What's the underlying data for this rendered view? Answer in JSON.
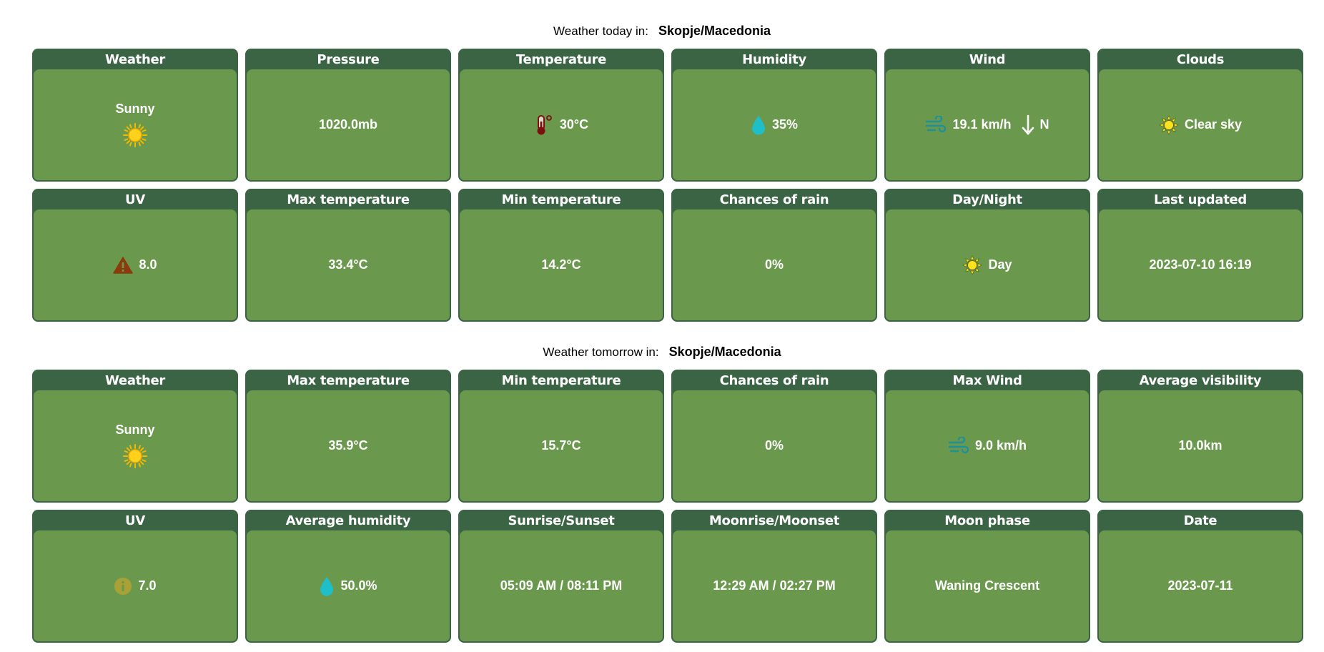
{
  "today": {
    "label": "Weather today in:",
    "location": "Skopje/Macedonia",
    "weather": {
      "header": "Weather",
      "condition": "Sunny",
      "icon": "sun-icon"
    },
    "pressure": {
      "header": "Pressure",
      "value": "1020.0mb"
    },
    "temperature": {
      "header": "Temperature",
      "value": "30°C",
      "icon": "thermometer-icon"
    },
    "humidity": {
      "header": "Humidity",
      "value": "35%",
      "icon": "water-drop-icon"
    },
    "wind": {
      "header": "Wind",
      "speed": "19.1 km/h",
      "direction": "N",
      "icon": "wind-icon",
      "direction_icon": "arrow-down-icon"
    },
    "clouds": {
      "header": "Clouds",
      "value": "Clear sky",
      "icon": "sun-icon"
    },
    "uv": {
      "header": "UV",
      "value": "8.0",
      "icon": "warning-icon"
    },
    "max_temp": {
      "header": "Max temperature",
      "value": "33.4°C"
    },
    "min_temp": {
      "header": "Min temperature",
      "value": "14.2°C"
    },
    "rain": {
      "header": "Chances of rain",
      "value": "0%"
    },
    "day_night": {
      "header": "Day/Night",
      "value": "Day",
      "icon": "sun-icon"
    },
    "last_updated": {
      "header": "Last updated",
      "value": "2023-07-10 16:19"
    }
  },
  "tomorrow": {
    "label": "Weather tomorrow in:",
    "location": "Skopje/Macedonia",
    "weather": {
      "header": "Weather",
      "condition": "Sunny",
      "icon": "sun-icon"
    },
    "max_temp": {
      "header": "Max temperature",
      "value": "35.9°C"
    },
    "min_temp": {
      "header": "Min temperature",
      "value": "15.7°C"
    },
    "rain": {
      "header": "Chances of rain",
      "value": "0%"
    },
    "max_wind": {
      "header": "Max Wind",
      "value": "9.0 km/h",
      "icon": "wind-icon"
    },
    "visibility": {
      "header": "Average visibility",
      "value": "10.0km"
    },
    "uv": {
      "header": "UV",
      "value": "7.0",
      "icon": "info-icon"
    },
    "humidity": {
      "header": "Average humidity",
      "value": "50.0%",
      "icon": "water-drop-icon"
    },
    "sun": {
      "header": "Sunrise/Sunset",
      "value": "05:09 AM / 08:11 PM"
    },
    "moon": {
      "header": "Moonrise/Moonset",
      "value": "12:29 AM / 02:27 PM"
    },
    "moon_phase": {
      "header": "Moon phase",
      "value": "Waning Crescent"
    },
    "date": {
      "header": "Date",
      "value": "2023-07-11"
    }
  },
  "colors": {
    "card_header": "#3b6444",
    "card_body": "#6a994e",
    "text": "#ffffff"
  }
}
